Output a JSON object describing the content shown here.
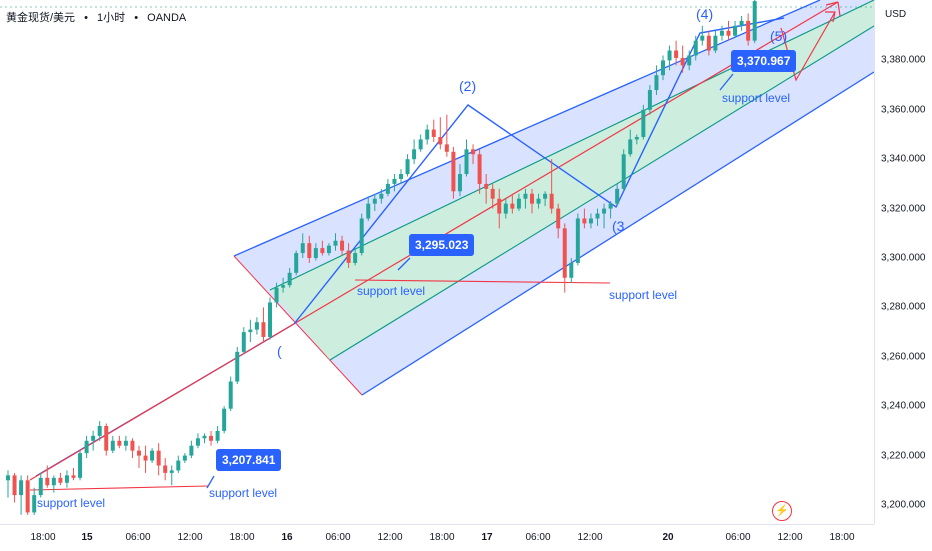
{
  "symbol": {
    "name": "黄金现货/美元",
    "sep1": "•",
    "interval": "1小时",
    "sep2": "•",
    "source": "OANDA"
  },
  "price_axis": {
    "currency": "USD",
    "ticks": [
      "3,380.000",
      "3,360.000",
      "3,340.000",
      "3,320.000",
      "3,300.000",
      "3,280.000",
      "3,260.000",
      "3,240.000",
      "3,220.000",
      "3,200.000"
    ]
  },
  "time_axis": {
    "ticks": [
      {
        "label": "18:00",
        "bold": false
      },
      {
        "label": "15",
        "bold": true
      },
      {
        "label": "06:00",
        "bold": false
      },
      {
        "label": "12:00",
        "bold": false
      },
      {
        "label": "18:00",
        "bold": false
      },
      {
        "label": "16",
        "bold": true
      },
      {
        "label": "06:00",
        "bold": false
      },
      {
        "label": "12:00",
        "bold": false
      },
      {
        "label": "18:00",
        "bold": false
      },
      {
        "label": "17",
        "bold": true
      },
      {
        "label": "06:00",
        "bold": false
      },
      {
        "label": "12:00",
        "bold": false
      },
      {
        "label": "20",
        "bold": true
      },
      {
        "label": "06:00",
        "bold": false
      },
      {
        "label": "12:00",
        "bold": false
      },
      {
        "label": "18:00",
        "bold": false
      }
    ]
  },
  "annotations": {
    "price_labels": [
      "3,295.023",
      "3,207.841",
      "3,370.967"
    ],
    "support_labels": [
      "support level",
      "support level",
      "support level",
      "support level"
    ],
    "wave_labels": [
      "(2)",
      "(4)",
      "(5)",
      "(3",
      "("
    ]
  },
  "colors": {
    "up": "#26a69a",
    "down": "#ef5350",
    "channel_blue": "#2962ff",
    "channel_fill": "#c9d6ff",
    "inner_fill": "#cbeedc",
    "inner_line": "#089981",
    "trend_red": "#f23645"
  },
  "chart_data": {
    "type": "candlestick",
    "y_unit": "USD",
    "ylim": [
      3195,
      3405
    ],
    "candles": [
      {
        "o": 3210,
        "h": 3214,
        "l": 3203,
        "c": 3212
      },
      {
        "o": 3212,
        "h": 3213,
        "l": 3201,
        "c": 3204
      },
      {
        "o": 3204,
        "h": 3212,
        "l": 3196,
        "c": 3210
      },
      {
        "o": 3210,
        "h": 3212,
        "l": 3196,
        "c": 3197
      },
      {
        "o": 3197,
        "h": 3207,
        "l": 3196,
        "c": 3204
      },
      {
        "o": 3204,
        "h": 3213,
        "l": 3203,
        "c": 3211
      },
      {
        "o": 3211,
        "h": 3216,
        "l": 3207,
        "c": 3208
      },
      {
        "o": 3208,
        "h": 3212,
        "l": 3205,
        "c": 3211
      },
      {
        "o": 3211,
        "h": 3213,
        "l": 3208,
        "c": 3209
      },
      {
        "o": 3209,
        "h": 3214,
        "l": 3207,
        "c": 3212
      },
      {
        "o": 3212,
        "h": 3215,
        "l": 3210,
        "c": 3211
      },
      {
        "o": 3211,
        "h": 3222,
        "l": 3210,
        "c": 3221
      },
      {
        "o": 3221,
        "h": 3228,
        "l": 3219,
        "c": 3226
      },
      {
        "o": 3226,
        "h": 3230,
        "l": 3222,
        "c": 3228
      },
      {
        "o": 3228,
        "h": 3234,
        "l": 3226,
        "c": 3232
      },
      {
        "o": 3232,
        "h": 3233,
        "l": 3220,
        "c": 3222
      },
      {
        "o": 3222,
        "h": 3228,
        "l": 3221,
        "c": 3226
      },
      {
        "o": 3226,
        "h": 3228,
        "l": 3223,
        "c": 3224
      },
      {
        "o": 3224,
        "h": 3228,
        "l": 3222,
        "c": 3226
      },
      {
        "o": 3226,
        "h": 3227,
        "l": 3219,
        "c": 3222
      },
      {
        "o": 3222,
        "h": 3224,
        "l": 3215,
        "c": 3220
      },
      {
        "o": 3220,
        "h": 3224,
        "l": 3213,
        "c": 3218
      },
      {
        "o": 3218,
        "h": 3223,
        "l": 3217,
        "c": 3222
      },
      {
        "o": 3222,
        "h": 3225,
        "l": 3212,
        "c": 3216
      },
      {
        "o": 3216,
        "h": 3219,
        "l": 3210,
        "c": 3213
      },
      {
        "o": 3213,
        "h": 3216,
        "l": 3208,
        "c": 3214
      },
      {
        "o": 3214,
        "h": 3220,
        "l": 3213,
        "c": 3218
      },
      {
        "o": 3218,
        "h": 3221,
        "l": 3217,
        "c": 3220
      },
      {
        "o": 3220,
        "h": 3226,
        "l": 3219,
        "c": 3224
      },
      {
        "o": 3224,
        "h": 3229,
        "l": 3223,
        "c": 3227
      },
      {
        "o": 3227,
        "h": 3229,
        "l": 3225,
        "c": 3228
      },
      {
        "o": 3228,
        "h": 3230,
        "l": 3224,
        "c": 3226
      },
      {
        "o": 3226,
        "h": 3232,
        "l": 3225,
        "c": 3230
      },
      {
        "o": 3230,
        "h": 3240,
        "l": 3229,
        "c": 3239
      },
      {
        "o": 3239,
        "h": 3252,
        "l": 3238,
        "c": 3250
      },
      {
        "o": 3250,
        "h": 3264,
        "l": 3249,
        "c": 3262
      },
      {
        "o": 3262,
        "h": 3272,
        "l": 3261,
        "c": 3270
      },
      {
        "o": 3270,
        "h": 3275,
        "l": 3266,
        "c": 3271
      },
      {
        "o": 3271,
        "h": 3276,
        "l": 3269,
        "c": 3274
      },
      {
        "o": 3274,
        "h": 3280,
        "l": 3266,
        "c": 3268
      },
      {
        "o": 3268,
        "h": 3284,
        "l": 3267,
        "c": 3282
      },
      {
        "o": 3282,
        "h": 3290,
        "l": 3280,
        "c": 3288
      },
      {
        "o": 3288,
        "h": 3292,
        "l": 3286,
        "c": 3289
      },
      {
        "o": 3289,
        "h": 3296,
        "l": 3288,
        "c": 3294
      },
      {
        "o": 3294,
        "h": 3303,
        "l": 3293,
        "c": 3302
      },
      {
        "o": 3302,
        "h": 3310,
        "l": 3300,
        "c": 3306
      },
      {
        "o": 3306,
        "h": 3309,
        "l": 3298,
        "c": 3300
      },
      {
        "o": 3300,
        "h": 3306,
        "l": 3299,
        "c": 3304
      },
      {
        "o": 3304,
        "h": 3307,
        "l": 3301,
        "c": 3302
      },
      {
        "o": 3302,
        "h": 3306,
        "l": 3301,
        "c": 3305
      },
      {
        "o": 3305,
        "h": 3310,
        "l": 3303,
        "c": 3307
      },
      {
        "o": 3307,
        "h": 3309,
        "l": 3301,
        "c": 3303
      },
      {
        "o": 3303,
        "h": 3306,
        "l": 3296,
        "c": 3298
      },
      {
        "o": 3298,
        "h": 3304,
        "l": 3297,
        "c": 3302
      },
      {
        "o": 3302,
        "h": 3318,
        "l": 3301,
        "c": 3316
      },
      {
        "o": 3316,
        "h": 3325,
        "l": 3315,
        "c": 3322
      },
      {
        "o": 3322,
        "h": 3326,
        "l": 3319,
        "c": 3324
      },
      {
        "o": 3324,
        "h": 3328,
        "l": 3322,
        "c": 3326
      },
      {
        "o": 3326,
        "h": 3332,
        "l": 3325,
        "c": 3330
      },
      {
        "o": 3330,
        "h": 3334,
        "l": 3327,
        "c": 3332
      },
      {
        "o": 3332,
        "h": 3336,
        "l": 3330,
        "c": 3334
      },
      {
        "o": 3334,
        "h": 3342,
        "l": 3333,
        "c": 3340
      },
      {
        "o": 3340,
        "h": 3348,
        "l": 3338,
        "c": 3344
      },
      {
        "o": 3344,
        "h": 3350,
        "l": 3343,
        "c": 3348
      },
      {
        "o": 3348,
        "h": 3354,
        "l": 3346,
        "c": 3352
      },
      {
        "o": 3352,
        "h": 3356,
        "l": 3347,
        "c": 3349
      },
      {
        "o": 3349,
        "h": 3357,
        "l": 3344,
        "c": 3346
      },
      {
        "o": 3346,
        "h": 3358,
        "l": 3341,
        "c": 3343
      },
      {
        "o": 3343,
        "h": 3345,
        "l": 3324,
        "c": 3327
      },
      {
        "o": 3327,
        "h": 3338,
        "l": 3325,
        "c": 3334
      },
      {
        "o": 3334,
        "h": 3348,
        "l": 3333,
        "c": 3344
      },
      {
        "o": 3344,
        "h": 3346,
        "l": 3338,
        "c": 3342
      },
      {
        "o": 3342,
        "h": 3344,
        "l": 3326,
        "c": 3330
      },
      {
        "o": 3330,
        "h": 3334,
        "l": 3322,
        "c": 3328
      },
      {
        "o": 3328,
        "h": 3330,
        "l": 3320,
        "c": 3324
      },
      {
        "o": 3324,
        "h": 3328,
        "l": 3312,
        "c": 3318
      },
      {
        "o": 3318,
        "h": 3324,
        "l": 3316,
        "c": 3322
      },
      {
        "o": 3322,
        "h": 3326,
        "l": 3318,
        "c": 3320
      },
      {
        "o": 3320,
        "h": 3326,
        "l": 3319,
        "c": 3324
      },
      {
        "o": 3324,
        "h": 3328,
        "l": 3320,
        "c": 3326
      },
      {
        "o": 3326,
        "h": 3328,
        "l": 3318,
        "c": 3322
      },
      {
        "o": 3322,
        "h": 3326,
        "l": 3320,
        "c": 3324
      },
      {
        "o": 3324,
        "h": 3327,
        "l": 3321,
        "c": 3326
      },
      {
        "o": 3326,
        "h": 3340,
        "l": 3318,
        "c": 3320
      },
      {
        "o": 3320,
        "h": 3322,
        "l": 3308,
        "c": 3312
      },
      {
        "o": 3312,
        "h": 3314,
        "l": 3286,
        "c": 3292
      },
      {
        "o": 3292,
        "h": 3300,
        "l": 3290,
        "c": 3298
      },
      {
        "o": 3298,
        "h": 3318,
        "l": 3297,
        "c": 3316
      },
      {
        "o": 3316,
        "h": 3320,
        "l": 3312,
        "c": 3314
      },
      {
        "o": 3314,
        "h": 3318,
        "l": 3312,
        "c": 3316
      },
      {
        "o": 3316,
        "h": 3320,
        "l": 3313,
        "c": 3318
      },
      {
        "o": 3318,
        "h": 3322,
        "l": 3312,
        "c": 3320
      },
      {
        "o": 3320,
        "h": 3323,
        "l": 3316,
        "c": 3322
      },
      {
        "o": 3322,
        "h": 3330,
        "l": 3321,
        "c": 3328
      },
      {
        "o": 3328,
        "h": 3344,
        "l": 3327,
        "c": 3342
      },
      {
        "o": 3342,
        "h": 3352,
        "l": 3341,
        "c": 3348
      },
      {
        "o": 3348,
        "h": 3350,
        "l": 3346,
        "c": 3349
      },
      {
        "o": 3349,
        "h": 3362,
        "l": 3348,
        "c": 3360
      },
      {
        "o": 3360,
        "h": 3370,
        "l": 3358,
        "c": 3368
      },
      {
        "o": 3368,
        "h": 3378,
        "l": 3366,
        "c": 3374
      },
      {
        "o": 3374,
        "h": 3382,
        "l": 3372,
        "c": 3380
      },
      {
        "o": 3380,
        "h": 3386,
        "l": 3376,
        "c": 3384
      },
      {
        "o": 3384,
        "h": 3388,
        "l": 3378,
        "c": 3381
      },
      {
        "o": 3381,
        "h": 3386,
        "l": 3375,
        "c": 3378
      },
      {
        "o": 3378,
        "h": 3384,
        "l": 3376,
        "c": 3382
      },
      {
        "o": 3382,
        "h": 3390,
        "l": 3380,
        "c": 3388
      },
      {
        "o": 3388,
        "h": 3394,
        "l": 3386,
        "c": 3390
      },
      {
        "o": 3390,
        "h": 3392,
        "l": 3382,
        "c": 3384
      },
      {
        "o": 3384,
        "h": 3392,
        "l": 3383,
        "c": 3390
      },
      {
        "o": 3390,
        "h": 3394,
        "l": 3388,
        "c": 3392
      },
      {
        "o": 3392,
        "h": 3396,
        "l": 3388,
        "c": 3390
      },
      {
        "o": 3390,
        "h": 3396,
        "l": 3389,
        "c": 3394
      },
      {
        "o": 3394,
        "h": 3398,
        "l": 3392,
        "c": 3396
      },
      {
        "o": 3396,
        "h": 3399,
        "l": 3386,
        "c": 3388
      },
      {
        "o": 3388,
        "h": 3406,
        "l": 3387,
        "c": 3404
      }
    ]
  }
}
